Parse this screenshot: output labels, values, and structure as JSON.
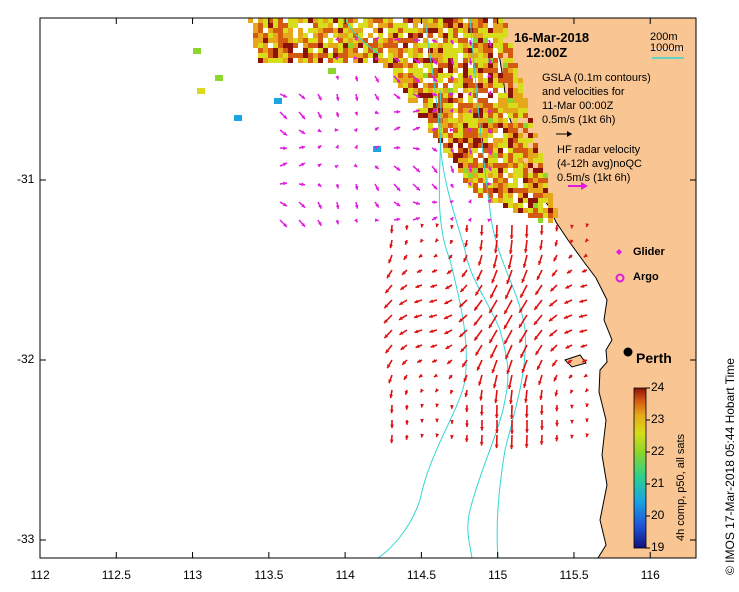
{
  "map": {
    "title_date": "16-Mar-2018",
    "title_time": "12:00Z",
    "depth_200": "200m",
    "depth_1000": "1000m",
    "gsla_lines": [
      "GSLA (0.1m contours)",
      "and velocities for",
      "11-Mar 00:00Z",
      "0.5m/s (1kt 6h)"
    ],
    "hf_lines": [
      "HF radar velocity",
      "(4-12h avg)noQC",
      "0.5m/s (1kt 6h)"
    ],
    "glider_label": "Glider",
    "argo_label": "Argo",
    "city_label": "Perth",
    "credit": "© IMOS 17-Mar-2018 05:44 Hobart Time",
    "colorbar_title": "4h comp, p50, all sats",
    "colorbar_ticks": [
      "24",
      "23",
      "22",
      "21",
      "20",
      "19"
    ],
    "colors": {
      "land": "#f9c592",
      "bathymetry": "#33d6d6",
      "gsla_arrows": "#e01be0",
      "hf_arrows": "#dd1111",
      "sst_colormap": [
        "#12127a",
        "#1f54d8",
        "#1aa6e0",
        "#2fd08a",
        "#8ed62a",
        "#d8dc1a",
        "#e6a81a",
        "#d45a12",
        "#8a1208"
      ]
    }
  },
  "chart_data": {
    "type": "map",
    "xlabel": "",
    "ylabel": "",
    "xlim": [
      112,
      116.3
    ],
    "ylim": [
      -33.1,
      -30.1
    ],
    "x_ticks": [
      "112",
      "112.5",
      "113",
      "113.5",
      "114",
      "114.5",
      "115",
      "115.5",
      "116"
    ],
    "y_ticks": [
      "-31",
      "-32",
      "-33"
    ],
    "x_tick_values": [
      112,
      112.5,
      113,
      113.5,
      114,
      114.5,
      115,
      115.5,
      116
    ],
    "y_tick_values": [
      -31,
      -32,
      -33
    ],
    "perth": {
      "lon": 115.86,
      "lat": -31.95
    },
    "colorbar": {
      "min": 19,
      "max": 24
    }
  }
}
